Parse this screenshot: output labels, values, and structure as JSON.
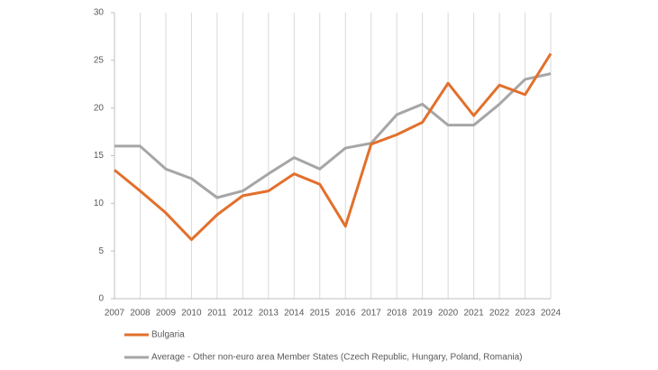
{
  "chart_data": {
    "type": "line",
    "categories": [
      "2007",
      "2008",
      "2009",
      "2010",
      "2011",
      "2012",
      "2013",
      "2014",
      "2015",
      "2016",
      "2017",
      "2018",
      "2019",
      "2020",
      "2021",
      "2022",
      "2023",
      "2024"
    ],
    "series": [
      {
        "name": "Bulgaria",
        "color": "#e2702c",
        "values": [
          13.5,
          11.3,
          9.0,
          6.2,
          8.8,
          10.8,
          11.3,
          13.1,
          12.0,
          7.6,
          16.2,
          17.2,
          18.5,
          22.6,
          19.2,
          22.4,
          21.4,
          25.7
        ]
      },
      {
        "name": "Average - Other non-euro area Member States (Czech Republic, Hungary, Poland, Romania)",
        "color": "#a6a6a6",
        "values": [
          16.0,
          16.0,
          13.6,
          12.6,
          10.6,
          11.3,
          13.1,
          14.8,
          13.6,
          15.8,
          16.3,
          19.3,
          20.4,
          18.2,
          18.2,
          20.4,
          23.0,
          23.6
        ]
      }
    ],
    "ylim": [
      0,
      30
    ],
    "yticks": [
      0,
      5,
      10,
      15,
      20,
      25,
      30
    ],
    "grid": true
  }
}
